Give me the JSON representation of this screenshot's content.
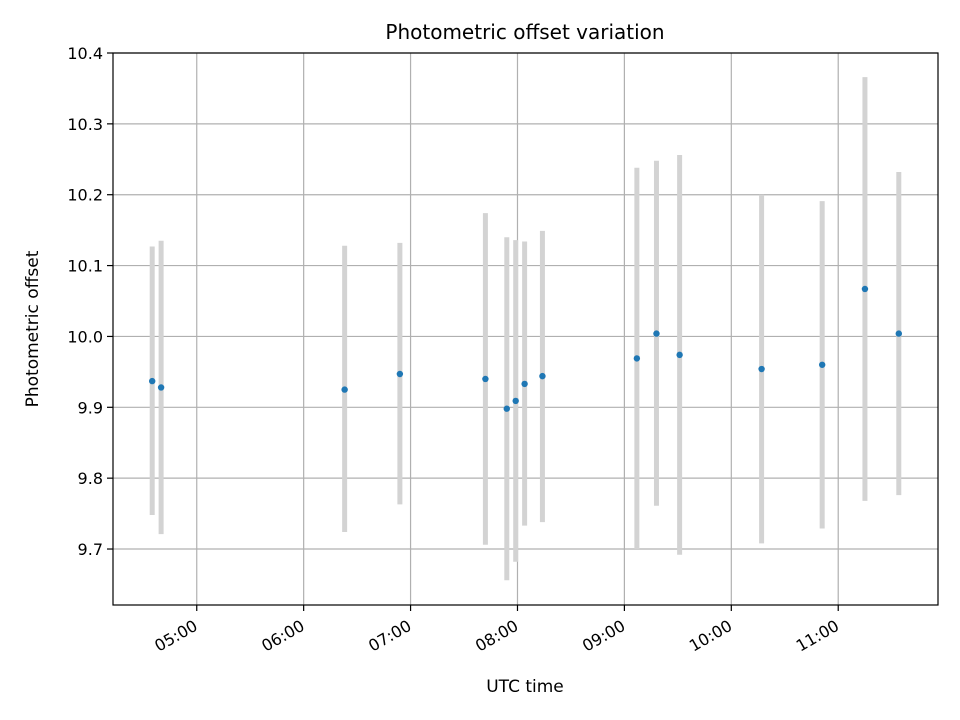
{
  "chart_data": {
    "type": "scatter",
    "title": "Photometric offset variation",
    "xlabel": "UTC time",
    "ylabel": "Photometric offset",
    "x_ticks": [
      "05:00",
      "06:00",
      "07:00",
      "08:00",
      "09:00",
      "10:00",
      "11:00"
    ],
    "y_ticks": [
      "9.7",
      "9.8",
      "9.9",
      "10.0",
      "10.1",
      "10.2",
      "10.3",
      "10.4"
    ],
    "xlim": [
      "04:13",
      "11:56"
    ],
    "ylim": [
      9.621,
      10.4
    ],
    "grid": true,
    "marker_color": "#1f77b4",
    "errorbar_color": "#d3d3d3",
    "points": [
      {
        "x": "04:35",
        "y": 9.937,
        "lo": 9.748,
        "hi": 10.127
      },
      {
        "x": "04:40",
        "y": 9.928,
        "lo": 9.721,
        "hi": 10.135
      },
      {
        "x": "06:23",
        "y": 9.925,
        "lo": 9.724,
        "hi": 10.128
      },
      {
        "x": "06:54",
        "y": 9.947,
        "lo": 9.763,
        "hi": 10.132
      },
      {
        "x": "07:42",
        "y": 9.94,
        "lo": 9.706,
        "hi": 10.174
      },
      {
        "x": "07:54",
        "y": 9.898,
        "lo": 9.656,
        "hi": 10.14
      },
      {
        "x": "07:59",
        "y": 9.909,
        "lo": 9.682,
        "hi": 10.136
      },
      {
        "x": "08:04",
        "y": 9.933,
        "lo": 9.733,
        "hi": 10.134
      },
      {
        "x": "08:14",
        "y": 9.944,
        "lo": 9.738,
        "hi": 10.149
      },
      {
        "x": "09:07",
        "y": 9.969,
        "lo": 9.7,
        "hi": 10.238
      },
      {
        "x": "09:18",
        "y": 10.004,
        "lo": 9.761,
        "hi": 10.248
      },
      {
        "x": "09:31",
        "y": 9.974,
        "lo": 9.692,
        "hi": 10.256
      },
      {
        "x": "10:17",
        "y": 9.954,
        "lo": 9.708,
        "hi": 10.2
      },
      {
        "x": "10:51",
        "y": 9.96,
        "lo": 9.729,
        "hi": 10.191
      },
      {
        "x": "11:15",
        "y": 10.067,
        "lo": 9.768,
        "hi": 10.366
      },
      {
        "x": "11:34",
        "y": 10.004,
        "lo": 9.776,
        "hi": 10.232
      }
    ]
  }
}
